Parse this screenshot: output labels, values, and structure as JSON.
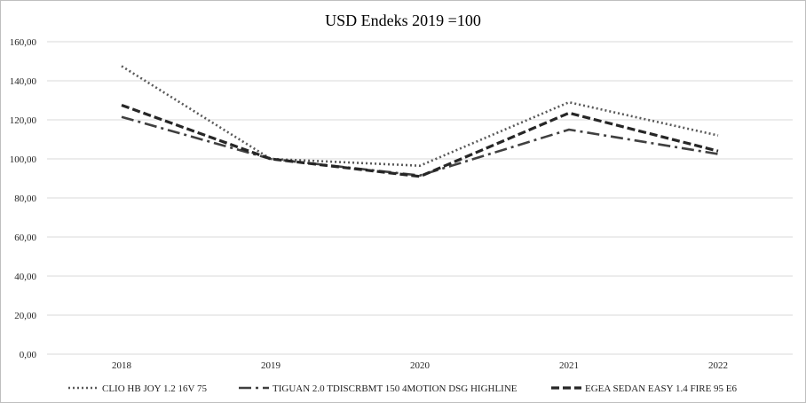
{
  "chart_data": {
    "type": "line",
    "title": "USD Endeks 2019 =100",
    "xlabel": "",
    "ylabel": "",
    "categories": [
      "2018",
      "2019",
      "2020",
      "2021",
      "2022"
    ],
    "ylim": [
      0,
      160
    ],
    "ytick_values": [
      0,
      20,
      40,
      60,
      80,
      100,
      120,
      140,
      160
    ],
    "ytick_labels": [
      "0,00",
      "20,00",
      "40,00",
      "60,00",
      "80,00",
      "100,00",
      "120,00",
      "140,00",
      "160,00"
    ],
    "grid": true,
    "legend_position": "bottom",
    "series": [
      {
        "name": "CLIO HB JOY 1.2 16V 75",
        "values": [
          147.5,
          100,
          96.5,
          129,
          112
        ],
        "color": "#595959",
        "style": "dotted"
      },
      {
        "name": "TIGUAN 2.0 TDISCRBMT 150 4MOTION DSG HIGHLINE",
        "values": [
          121.5,
          100,
          91.5,
          115,
          102.5
        ],
        "color": "#404040",
        "style": "dash-dot"
      },
      {
        "name": "EGEA SEDAN EASY 1.4 FIRE 95 E6",
        "values": [
          127.5,
          100,
          91,
          123.5,
          104
        ],
        "color": "#262626",
        "style": "dashed"
      }
    ]
  }
}
